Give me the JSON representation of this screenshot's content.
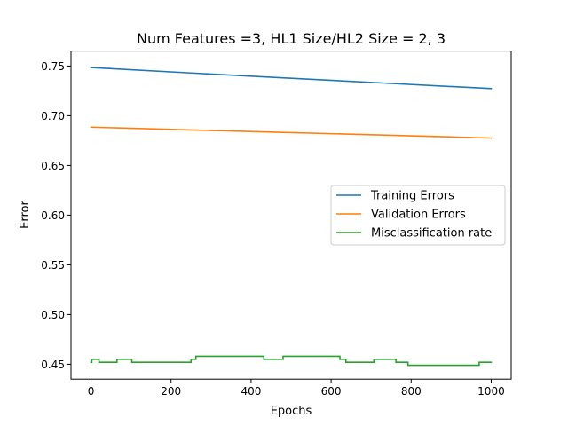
{
  "chart_data": {
    "type": "line",
    "title": "Num Features =3, HL1 Size/HL2 Size = 2, 3",
    "xlabel": "Epochs",
    "ylabel": "Error",
    "xlim": [
      -50,
      1050
    ],
    "ylim": [
      0.435,
      0.765
    ],
    "xticks": [
      0,
      200,
      400,
      600,
      800,
      1000
    ],
    "xtick_labels": [
      "0",
      "200",
      "400",
      "600",
      "800",
      "1000"
    ],
    "yticks": [
      0.45,
      0.5,
      0.55,
      0.6,
      0.65,
      0.7,
      0.75
    ],
    "ytick_labels": [
      "0.45",
      "0.50",
      "0.55",
      "0.60",
      "0.65",
      "0.70",
      "0.75"
    ],
    "grid": false,
    "legend_position": "center-right",
    "series": [
      {
        "name": "Training Errors",
        "color": "#1f77b4",
        "step": false,
        "points": [
          [
            0,
            0.7485
          ],
          [
            250,
            0.743
          ],
          [
            500,
            0.7377
          ],
          [
            750,
            0.7325
          ],
          [
            1000,
            0.7273
          ]
        ]
      },
      {
        "name": "Validation Errors",
        "color": "#ff7f0e",
        "step": false,
        "points": [
          [
            0,
            0.6885
          ],
          [
            250,
            0.6857
          ],
          [
            500,
            0.683
          ],
          [
            750,
            0.6803
          ],
          [
            1000,
            0.6775
          ]
        ]
      },
      {
        "name": "Misclassification rate",
        "color": "#2ca02c",
        "step": true,
        "points": [
          [
            0,
            0.452
          ],
          [
            2,
            0.455
          ],
          [
            20,
            0.452
          ],
          [
            65,
            0.455
          ],
          [
            102,
            0.452
          ],
          [
            250,
            0.455
          ],
          [
            262,
            0.458
          ],
          [
            432,
            0.455
          ],
          [
            480,
            0.458
          ],
          [
            622,
            0.455
          ],
          [
            637,
            0.452
          ],
          [
            707,
            0.455
          ],
          [
            762,
            0.452
          ],
          [
            792,
            0.449
          ],
          [
            970,
            0.452
          ],
          [
            1000,
            0.452
          ]
        ]
      }
    ]
  }
}
